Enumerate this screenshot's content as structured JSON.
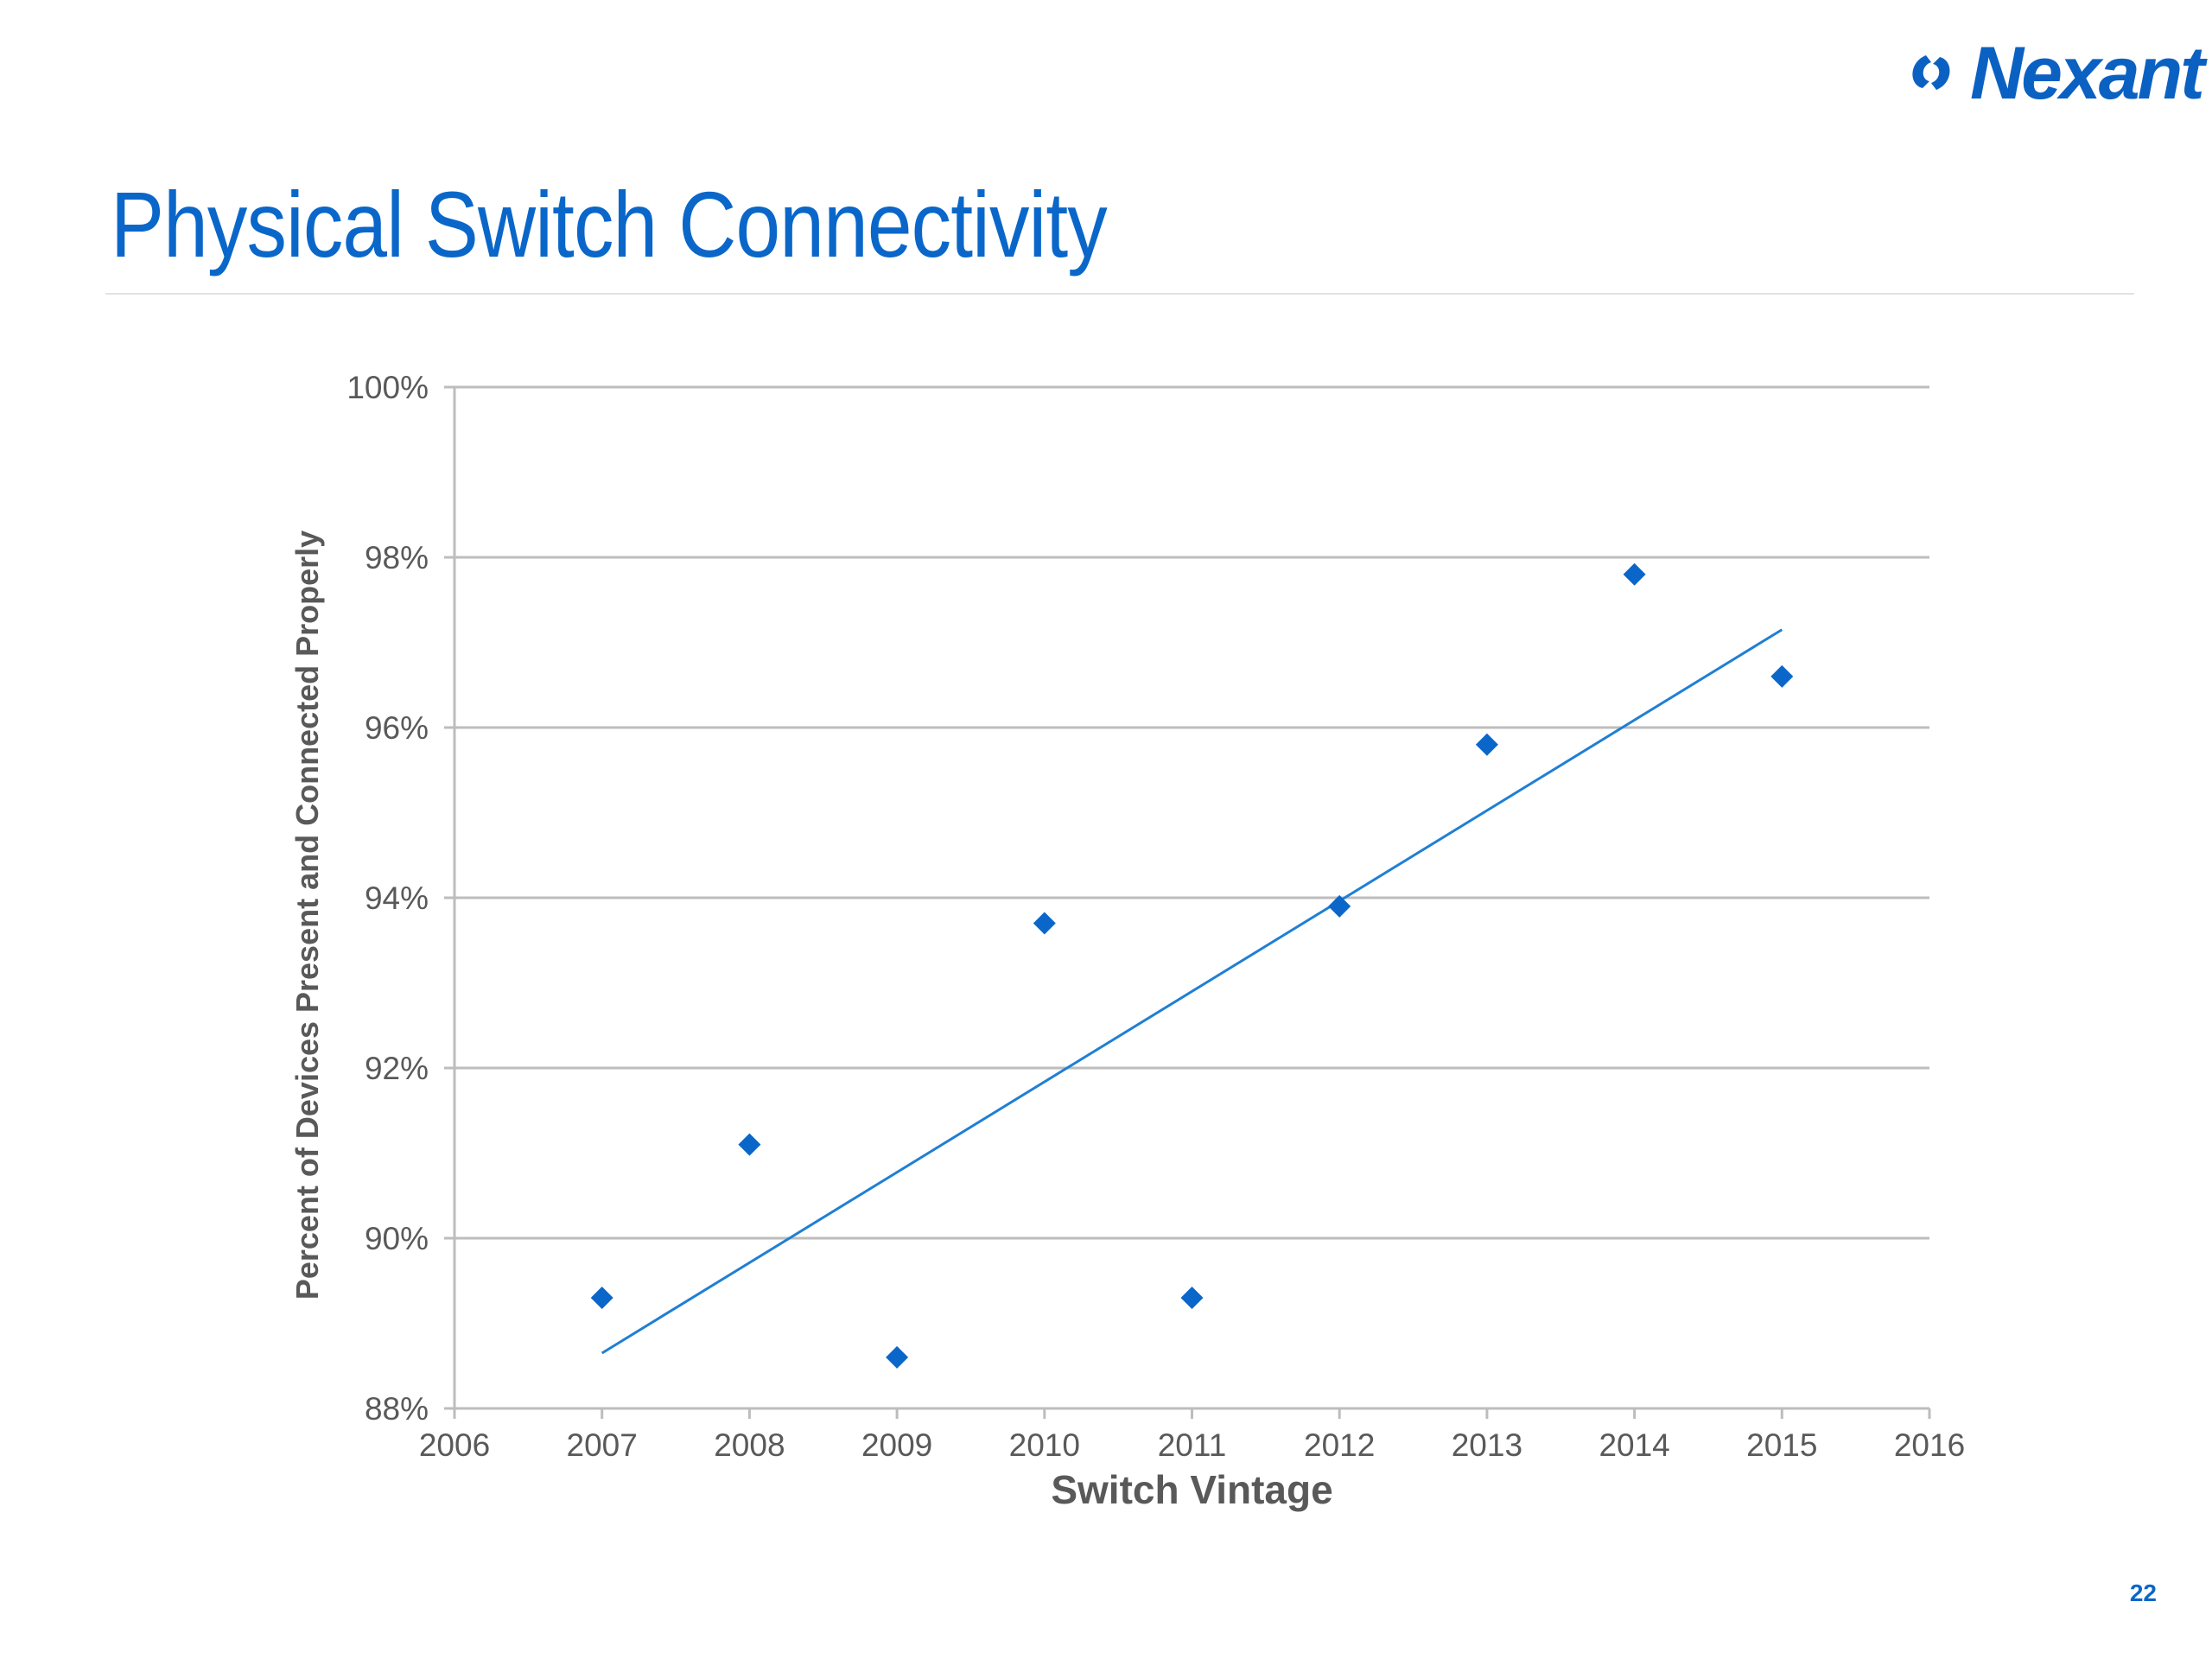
{
  "slide": {
    "title": "Physical Switch Connectivity",
    "page_number": "22",
    "logo_text": "Nexant"
  },
  "colors": {
    "accent": "#0a67c9",
    "marker": "#0a67c9",
    "trendline": "#1f7fd4",
    "gridline": "#bdbdbd",
    "axis_text": "#595959"
  },
  "chart_data": {
    "type": "scatter",
    "title": "",
    "xlabel": "Switch Vintage",
    "ylabel": "Percent of Devices Present and Connected Properly",
    "xlim": [
      2006,
      2016
    ],
    "ylim": [
      88,
      100
    ],
    "x_ticks": [
      "2006",
      "2007",
      "2008",
      "2009",
      "2010",
      "2011",
      "2012",
      "2013",
      "2014",
      "2015",
      "2016"
    ],
    "y_ticks": [
      "88%",
      "90%",
      "92%",
      "94%",
      "96%",
      "98%",
      "100%"
    ],
    "grid": true,
    "marker": "diamond",
    "series": [
      {
        "x": [
          2007,
          2008,
          2009,
          2010,
          2011,
          2012,
          2013,
          2014,
          2015
        ],
        "y": [
          89.3,
          91.1,
          88.6,
          93.7,
          89.3,
          93.9,
          95.8,
          97.8,
          96.6
        ]
      }
    ],
    "trendline": {
      "type": "linear",
      "x": [
        2007,
        2015
      ],
      "y": [
        88.65,
        97.15
      ]
    }
  }
}
